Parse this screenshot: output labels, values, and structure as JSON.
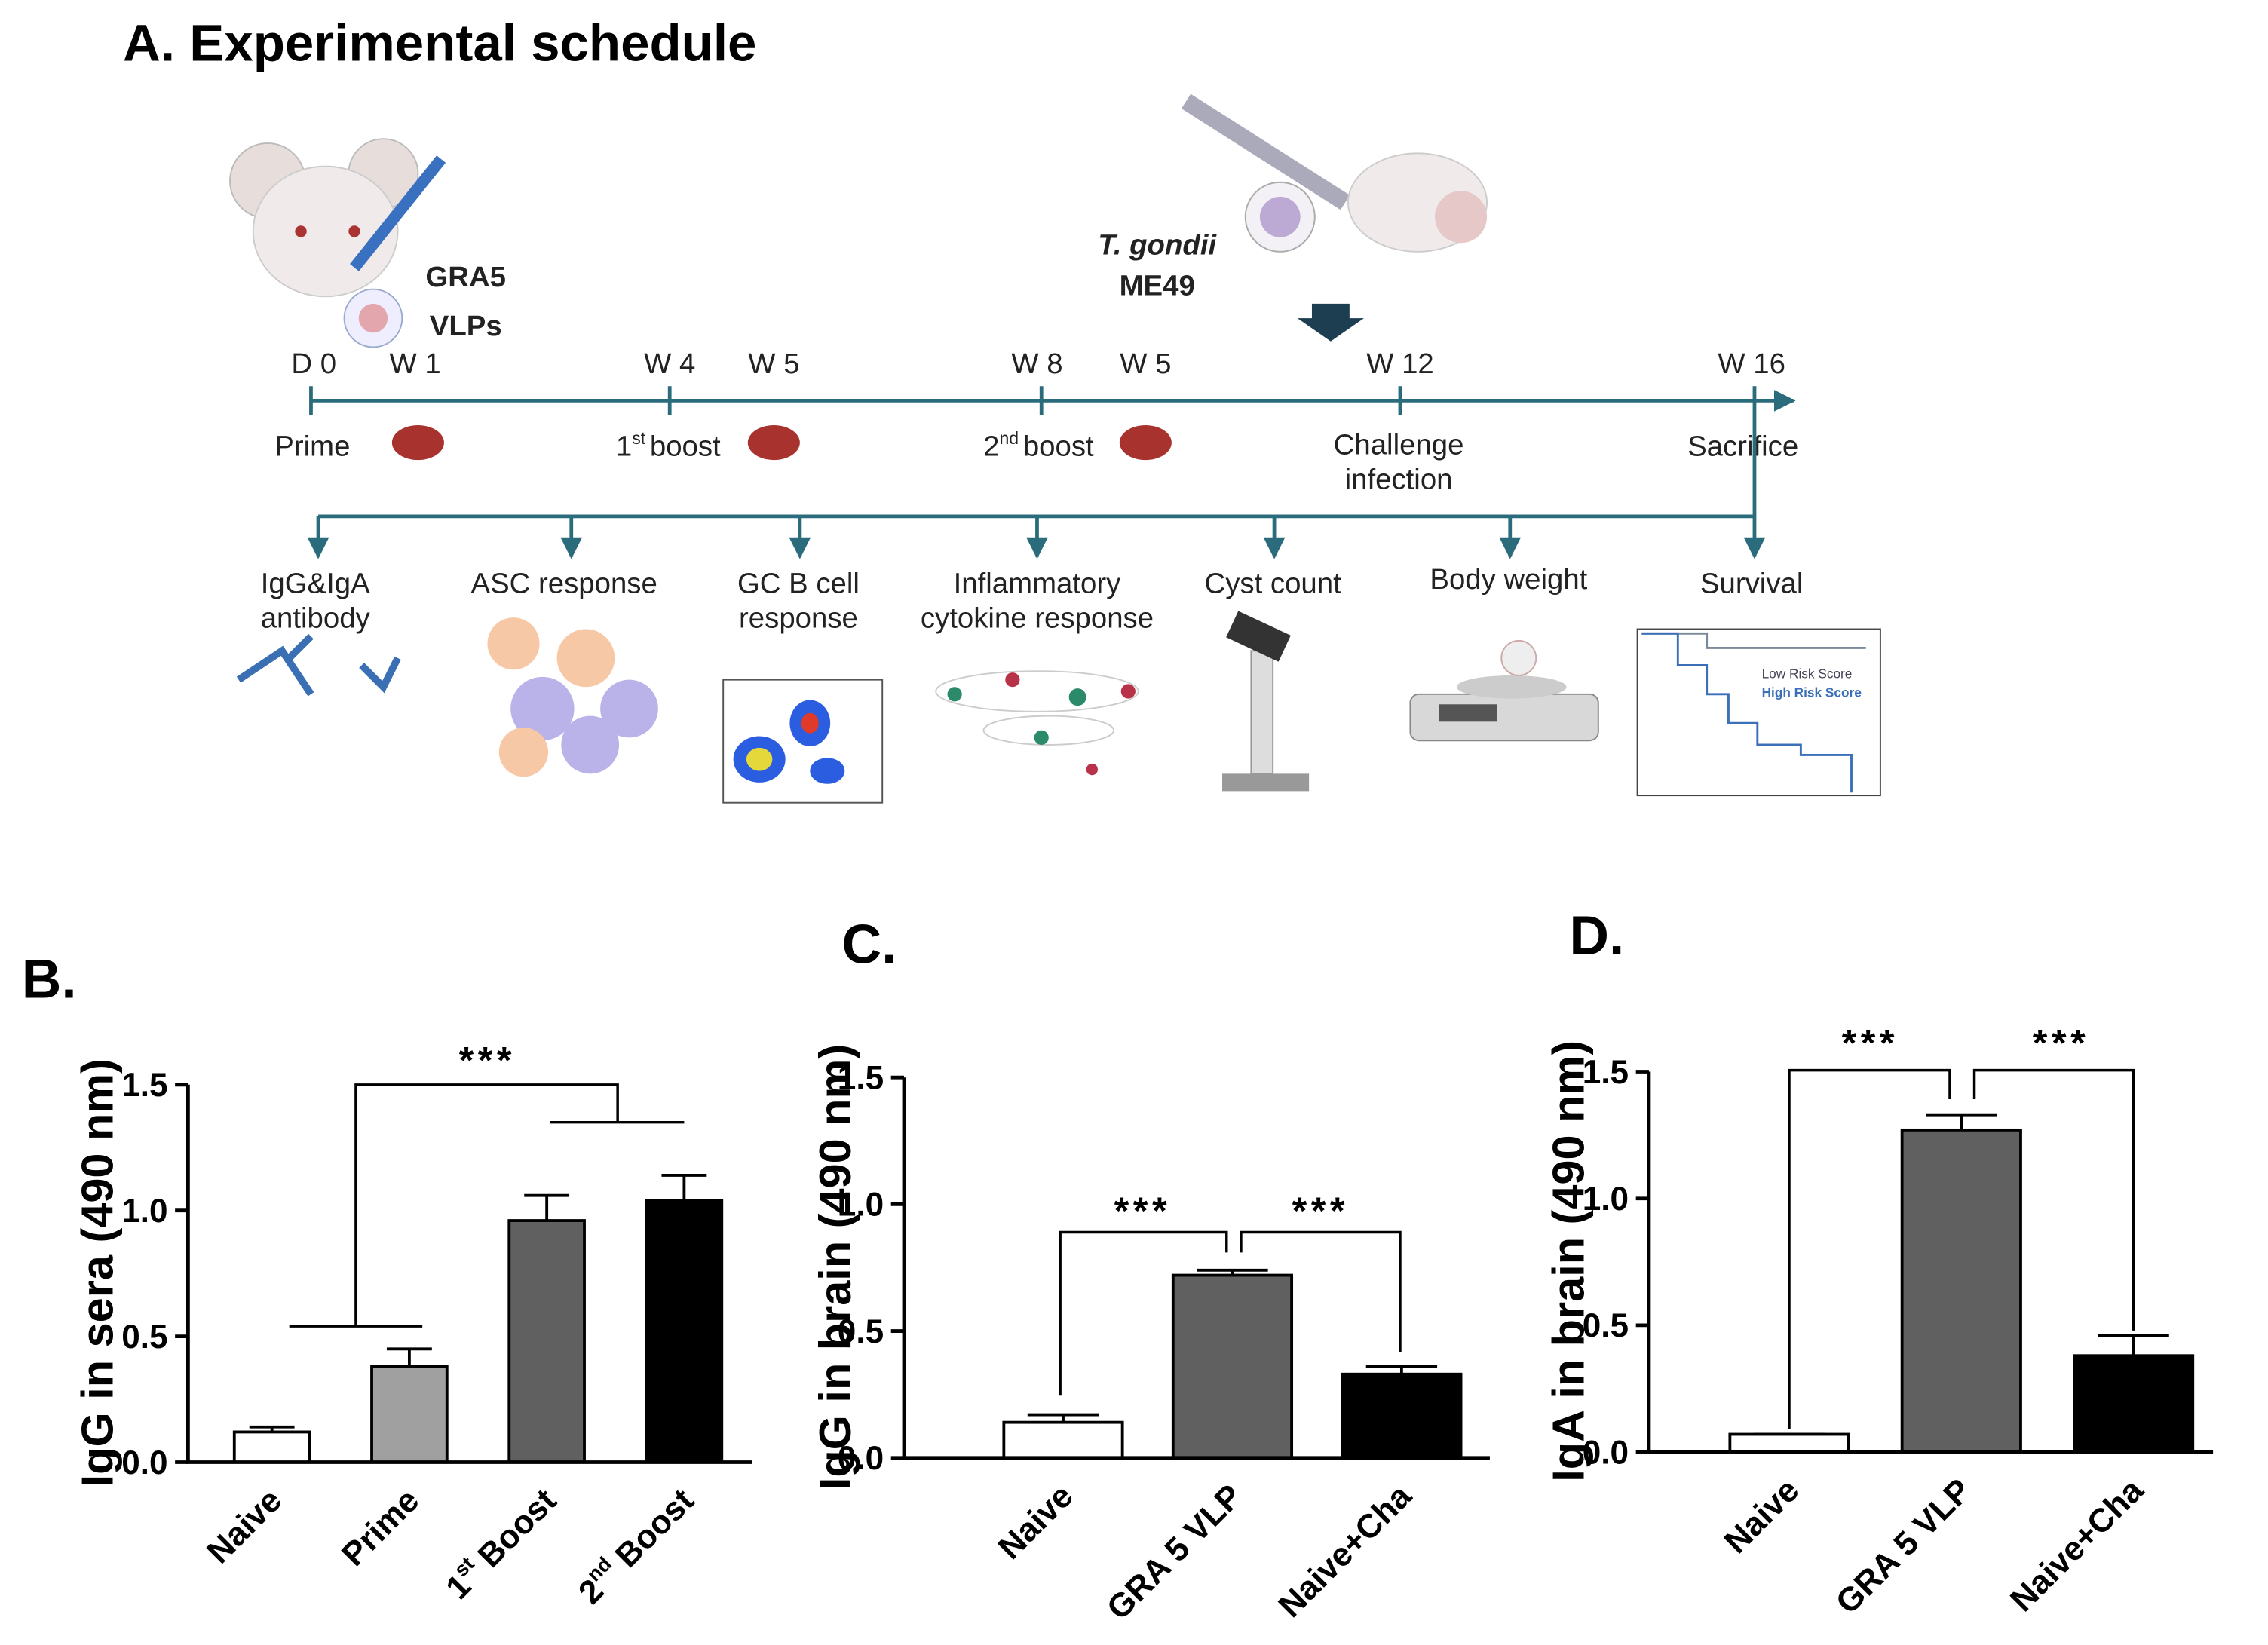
{
  "schedule": {
    "title": "A. Experimental schedule",
    "vaccine": [
      "GRA5",
      "VLPs"
    ],
    "parasite": [
      "T. gondii",
      "ME49"
    ],
    "timepoints": [
      "D 0",
      "W 1",
      "W 4",
      "W 5",
      "W 8",
      "W 5",
      "W 12",
      "W 16"
    ],
    "events": {
      "prime": "Prime",
      "boost1": {
        "text": "1",
        "sup": "st",
        "rest": "boost"
      },
      "boost2": {
        "text": "2",
        "sup": "nd",
        "rest": "boost"
      },
      "challenge": [
        "Challenge",
        "infection"
      ],
      "sacrifice": "Sacrifice"
    },
    "readouts": [
      [
        "IgG&IgA",
        "antibody"
      ],
      [
        "ASC response"
      ],
      [
        "GC B cell",
        "response"
      ],
      [
        "Inflammatory",
        "cytokine response"
      ],
      [
        "Cyst count"
      ],
      [
        "Body weight"
      ],
      [
        "Survival"
      ]
    ],
    "survival_legend": [
      "Low Risk Score",
      "High Risk Score"
    ]
  },
  "chart_data": [
    {
      "type": "bar",
      "title": "B.",
      "ylabel": "IgG in sera (490 nm)",
      "categories": [
        "Naive",
        "Prime",
        {
          "text": "1",
          "sup": "st",
          "rest": "Boost"
        },
        {
          "text": "2",
          "sup": "nd",
          "rest": "Boost"
        }
      ],
      "values": [
        0.12,
        0.38,
        0.96,
        1.04
      ],
      "errors": [
        0.02,
        0.07,
        0.1,
        0.1
      ],
      "colors": [
        "#ffffff",
        "#a0a0a0",
        "#606060",
        "#000000"
      ],
      "ylim": [
        0,
        1.5
      ],
      "yticks": [
        {
          "value": 0,
          "label": "0.0"
        },
        {
          "value": 0.5,
          "label": "0.5"
        },
        {
          "value": 1,
          "label": "1.0"
        },
        {
          "value": 1.5,
          "label": "1.5"
        }
      ],
      "annotations": [
        "***"
      ]
    },
    {
      "type": "bar",
      "title": "C.",
      "ylabel": "IgG in brain (490 nm)",
      "categories": [
        "Naive",
        "GRA 5 VLP",
        "Naive+Cha"
      ],
      "values": [
        0.14,
        0.72,
        0.33
      ],
      "errors": [
        0.03,
        0.02,
        0.03
      ],
      "colors": [
        "#ffffff",
        "#606060",
        "#000000"
      ],
      "ylim": [
        0,
        1.5
      ],
      "yticks": [
        {
          "value": 0,
          "label": "0.0"
        },
        {
          "value": 0.5,
          "label": "0.5"
        },
        {
          "value": 1,
          "label": "1.0"
        },
        {
          "value": 1.5,
          "label": "1.5"
        }
      ],
      "annotations": [
        "***",
        "***"
      ]
    },
    {
      "type": "bar",
      "title": "D.",
      "ylabel": "IgA in brain (490 nm)",
      "categories": [
        "Naive",
        "GRA 5 VLP",
        "Naive+Cha"
      ],
      "values": [
        0.07,
        1.27,
        0.38
      ],
      "errors": [
        0,
        0.06,
        0.08
      ],
      "colors": [
        "#ffffff",
        "#606060",
        "#000000"
      ],
      "ylim": [
        0,
        1.5
      ],
      "yticks": [
        {
          "value": 0,
          "label": "0.0"
        },
        {
          "value": 0.5,
          "label": "0.5"
        },
        {
          "value": 1,
          "label": "1.0"
        },
        {
          "value": 1.5,
          "label": "1.5"
        }
      ],
      "annotations": [
        "***",
        "***"
      ]
    }
  ]
}
